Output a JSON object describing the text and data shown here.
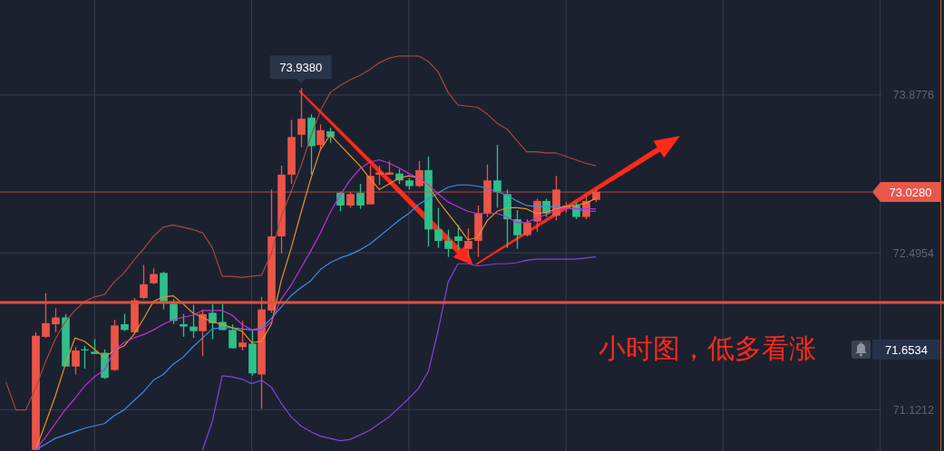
{
  "chart_data": {
    "type": "candlestick",
    "categories": [
      null,
      null,
      null,
      null,
      null,
      null,
      null,
      null,
      null,
      null,
      null,
      null,
      null,
      null,
      null,
      null,
      null,
      null,
      null,
      null,
      null,
      null,
      null,
      null,
      null,
      null,
      null,
      null,
      null,
      null,
      null,
      null,
      null,
      null,
      null,
      null,
      null,
      null,
      null,
      null,
      null,
      null,
      null,
      null,
      null,
      null,
      null,
      null,
      null,
      null,
      null,
      null,
      null,
      null,
      null,
      null,
      null,
      null,
      null,
      null,
      null
    ],
    "ohlc": [
      null,
      null,
      null,
      [
        70.77,
        71.8,
        70.77,
        71.77
      ],
      [
        71.76,
        72.14,
        71.75,
        71.88
      ],
      [
        71.87,
        72.01,
        71.8,
        71.93
      ],
      [
        71.93,
        71.96,
        71.5,
        71.5
      ],
      [
        71.5,
        71.67,
        71.43,
        71.64
      ],
      [
        71.65,
        71.68,
        71.48,
        71.64
      ],
      [
        71.63,
        71.74,
        71.61,
        71.61
      ],
      [
        71.62,
        71.65,
        71.39,
        71.4
      ],
      [
        71.47,
        71.91,
        71.46,
        71.86
      ],
      [
        71.87,
        71.96,
        71.81,
        71.82
      ],
      [
        71.8,
        72.1,
        71.79,
        72.08
      ],
      [
        72.1,
        72.39,
        72.09,
        72.22
      ],
      [
        72.23,
        72.36,
        72.22,
        72.31
      ],
      [
        72.32,
        72.33,
        72.0,
        72.07
      ],
      [
        72.05,
        72.09,
        71.87,
        71.9
      ],
      [
        71.87,
        71.96,
        71.76,
        71.85
      ],
      [
        71.85,
        72.04,
        71.75,
        71.81
      ],
      [
        71.81,
        72.0,
        71.59,
        71.96
      ],
      [
        71.97,
        72.05,
        71.74,
        71.88
      ],
      [
        71.89,
        72.05,
        71.82,
        71.82
      ],
      [
        71.82,
        71.87,
        71.66,
        71.66
      ],
      [
        71.67,
        71.9,
        71.64,
        71.71
      ],
      [
        71.7,
        71.82,
        71.42,
        71.44
      ],
      [
        71.43,
        72.11,
        71.13,
        72.0
      ],
      [
        71.99,
        73.05,
        71.97,
        72.64
      ],
      [
        72.64,
        73.26,
        72.49,
        73.18
      ],
      [
        73.18,
        73.66,
        73.1,
        73.51
      ],
      [
        73.53,
        73.938,
        73.42,
        73.67
      ],
      [
        73.68,
        73.71,
        73.18,
        73.43
      ],
      [
        73.44,
        73.62,
        73.4,
        73.57
      ],
      [
        73.56,
        73.59,
        73.46,
        73.51
      ],
      [
        73.02,
        73.03,
        72.86,
        72.91
      ],
      [
        72.91,
        73.03,
        72.89,
        73.01
      ],
      [
        73.02,
        73.1,
        72.88,
        72.91
      ],
      [
        72.92,
        73.26,
        72.92,
        73.17
      ],
      [
        73.18,
        73.26,
        73.09,
        73.2
      ],
      [
        73.18,
        73.3,
        73.18,
        73.2
      ],
      [
        73.19,
        73.23,
        73.1,
        73.13
      ],
      [
        73.13,
        73.15,
        73.05,
        73.08
      ],
      [
        73.08,
        73.3,
        73.07,
        73.22
      ],
      [
        73.22,
        73.34,
        72.55,
        72.7
      ],
      [
        72.7,
        72.89,
        72.54,
        72.6
      ],
      [
        72.6,
        72.7,
        72.46,
        72.53
      ],
      [
        72.64,
        72.74,
        72.52,
        72.6
      ],
      [
        72.53,
        72.71,
        72.46,
        72.6
      ],
      [
        72.6,
        72.91,
        72.46,
        72.84
      ],
      [
        72.84,
        73.27,
        72.81,
        73.13
      ],
      [
        73.13,
        73.44,
        72.89,
        73.03
      ],
      [
        73.01,
        73.05,
        72.54,
        72.79
      ],
      [
        72.79,
        72.87,
        72.53,
        72.65
      ],
      [
        72.65,
        72.79,
        72.64,
        72.76
      ],
      [
        72.77,
        72.97,
        72.68,
        72.95
      ],
      [
        72.95,
        72.97,
        72.81,
        72.84
      ],
      [
        72.82,
        73.17,
        72.78,
        73.05
      ],
      [
        72.89,
        72.94,
        72.85,
        72.91
      ],
      [
        72.91,
        72.94,
        72.79,
        72.81
      ],
      [
        72.81,
        72.99,
        72.79,
        72.95
      ],
      [
        72.96,
        73.05,
        72.94,
        73.028
      ]
    ],
    "colors": [
      null,
      null,
      null,
      "#eb5547",
      "#eb5547",
      "#eb5547",
      "#2ec08a",
      "#eb5547",
      "#2ec08a",
      "#2ec08a",
      "#2ec08a",
      "#eb5547",
      "#2ec08a",
      "#eb5547",
      "#eb5547",
      "#eb5547",
      "#2ec08a",
      "#2ec08a",
      "#2ec08a",
      "#2ec08a",
      "#eb5547",
      "#2ec08a",
      "#2ec08a",
      "#2ec08a",
      "#eb5547",
      "#2ec08a",
      "#eb5547",
      "#eb5547",
      "#eb5547",
      "#eb5547",
      "#eb5547",
      "#2ec08a",
      "#eb5547",
      "#2ec08a",
      "#2ec08a",
      "#eb5547",
      "#2ec08a",
      "#eb5547",
      "#eb5547",
      "#eb5547",
      "#2ec08a",
      "#2ec08a",
      "#eb5547",
      "#2ec08a",
      "#2ec08a",
      "#2ec08a",
      "#2ec08a",
      "#eb5547",
      "#eb5547",
      "#eb5547",
      "#2ec08a",
      "#2ec08a",
      "#2ec08a",
      "#eb5547",
      "#eb5547",
      "#2ec08a",
      "#eb5547",
      "#eb5547",
      "#2ec08a",
      "#eb5547",
      "#eb5547"
    ],
    "series": [
      {
        "type": "line",
        "color": "#a8483c",
        "values": [
          71.36,
          71.12,
          71.12,
          71.31,
          71.54,
          71.74,
          71.89,
          71.99,
          72.07,
          72.11,
          72.13,
          72.24,
          72.32,
          72.43,
          72.53,
          72.64,
          72.72,
          72.74,
          72.72,
          72.7,
          72.67,
          72.54,
          72.29,
          72.29,
          72.28,
          72.29,
          72.3,
          72.49,
          72.81,
          73.03,
          73.25,
          73.51,
          73.74,
          73.9,
          73.96,
          74.01,
          74.05,
          74.1,
          74.16,
          74.2,
          74.22,
          74.22,
          74.22,
          74.17,
          74.08,
          73.9,
          73.79,
          73.78,
          73.77,
          73.71,
          73.63,
          73.58,
          73.48,
          73.38,
          73.38,
          73.37,
          73.37,
          73.34,
          73.31,
          73.28,
          73.26
        ]
      },
      {
        "type": "line",
        "color": "#7d46d6",
        "values": [
          null,
          null,
          null,
          null,
          null,
          null,
          null,
          null,
          null,
          null,
          null,
          null,
          null,
          null,
          null,
          null,
          null,
          null,
          null,
          null,
          70.77,
          71.02,
          71.42,
          71.41,
          71.39,
          71.35,
          71.38,
          71.32,
          71.18,
          71.06,
          70.98,
          70.93,
          70.89,
          70.87,
          70.85,
          70.86,
          70.9,
          70.94,
          71.0,
          71.06,
          71.14,
          71.22,
          71.31,
          71.46,
          71.82,
          72.24,
          72.4,
          72.4,
          72.38,
          72.39,
          72.4,
          72.4,
          72.41,
          72.43,
          72.44,
          72.44,
          72.44,
          72.44,
          72.44,
          72.45,
          72.46
        ]
      },
      {
        "type": "line",
        "color": "#3c8ee2",
        "values": [
          null,
          null,
          null,
          70.77,
          70.82,
          70.87,
          70.9,
          70.93,
          70.96,
          70.98,
          71.0,
          71.07,
          71.12,
          71.2,
          71.28,
          71.38,
          71.43,
          71.52,
          71.58,
          71.67,
          71.75,
          71.83,
          71.84,
          71.84,
          71.83,
          71.82,
          71.84,
          71.92,
          72.02,
          72.12,
          72.19,
          72.25,
          72.35,
          72.41,
          72.45,
          72.48,
          72.52,
          72.57,
          72.64,
          72.71,
          72.78,
          72.84,
          72.92,
          72.97,
          73.02,
          73.07,
          73.09,
          73.09,
          73.08,
          73.06,
          73.03,
          73.0,
          72.95,
          72.91,
          72.9,
          72.9,
          72.9,
          72.89,
          72.88,
          72.86,
          72.86
        ]
      },
      {
        "type": "line",
        "color": "#e8922a",
        "values": [
          null,
          null,
          null,
          70.77,
          71.0,
          71.24,
          71.51,
          71.75,
          71.72,
          71.65,
          71.58,
          71.64,
          71.68,
          71.78,
          71.92,
          72.07,
          72.11,
          72.12,
          72.05,
          71.97,
          71.93,
          71.89,
          71.87,
          71.84,
          71.81,
          71.71,
          71.72,
          71.87,
          72.25,
          72.53,
          72.84,
          73.14,
          73.4,
          73.53,
          73.44,
          73.35,
          73.26,
          73.15,
          73.05,
          73.1,
          73.15,
          73.17,
          73.15,
          73.08,
          72.95,
          72.84,
          72.73,
          72.61,
          72.63,
          72.78,
          72.86,
          72.89,
          72.89,
          72.88,
          72.84,
          72.85,
          72.88,
          72.9,
          72.91,
          72.93,
          72.97
        ]
      },
      {
        "type": "line",
        "color": "#c32fd6",
        "values": [
          null,
          null,
          null,
          70.77,
          70.88,
          71.0,
          71.12,
          71.22,
          71.33,
          71.41,
          71.47,
          71.64,
          71.71,
          71.75,
          71.78,
          71.82,
          71.87,
          71.91,
          71.93,
          71.95,
          71.99,
          71.99,
          71.99,
          71.95,
          71.87,
          71.82,
          71.82,
          71.89,
          72.09,
          72.21,
          72.36,
          72.51,
          72.67,
          72.85,
          73.0,
          73.13,
          73.23,
          73.29,
          73.31,
          73.28,
          73.24,
          73.19,
          73.15,
          73.09,
          73.01,
          72.94,
          72.9,
          72.86,
          72.84,
          72.84,
          72.84,
          72.81,
          72.76,
          72.76,
          72.8,
          72.83,
          72.87,
          72.89,
          72.88,
          72.88,
          72.88
        ]
      }
    ],
    "ylim": [
      70.76,
      74.71
    ],
    "yticks": [
      73.8776,
      72.4954,
      71.1212
    ],
    "grid": true,
    "tick_labels": "y",
    "ref_lines": [
      {
        "axis": "y",
        "value": 73.028,
        "label": "73.0280",
        "color": "#e8574a"
      },
      {
        "axis": "y",
        "value": 72.06,
        "color": "#e4513b"
      }
    ],
    "annotations": [
      "小时图，低多看涨",
      {
        "text": "73.9380",
        "y": 73.938
      },
      "71.6534"
    ]
  }
}
